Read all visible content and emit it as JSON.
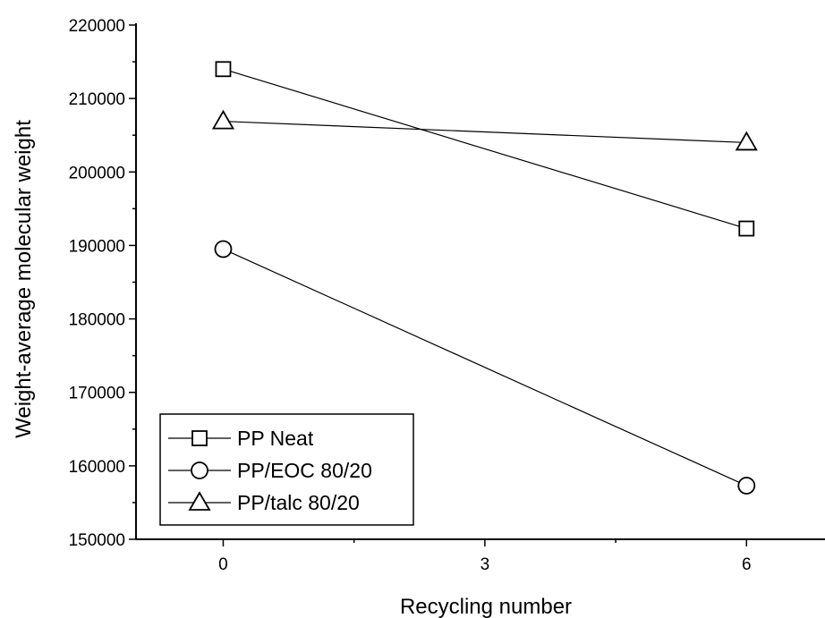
{
  "chart_data": {
    "type": "line",
    "title": "",
    "xlabel": "Recycling number",
    "ylabel": "Weight-average molecular weight",
    "x_ticks": [
      0,
      3,
      6
    ],
    "x_tick_labels": [
      "0",
      "3",
      "6"
    ],
    "y_ticks": [
      150000,
      160000,
      170000,
      180000,
      190000,
      200000,
      210000,
      220000
    ],
    "y_tick_labels": [
      "150000",
      "160000",
      "170000",
      "180000",
      "190000",
      "200000",
      "210000",
      "220000"
    ],
    "xlim": [
      -1,
      6.9
    ],
    "ylim": [
      150000,
      220000
    ],
    "grid": false,
    "legend_position": "bottom-left",
    "series": [
      {
        "name": "PP Neat",
        "marker": "square",
        "x": [
          0,
          6
        ],
        "y": [
          214000,
          192300
        ]
      },
      {
        "name": "PP/EOC 80/20",
        "marker": "circle",
        "x": [
          0,
          6
        ],
        "y": [
          189500,
          157300
        ]
      },
      {
        "name": "PP/talc 80/20",
        "marker": "triangle",
        "x": [
          0,
          6
        ],
        "y": [
          206900,
          204000
        ]
      }
    ],
    "colors": {
      "line": "#000000",
      "marker_fill": "#ffffff",
      "background": "#ffffff"
    }
  }
}
